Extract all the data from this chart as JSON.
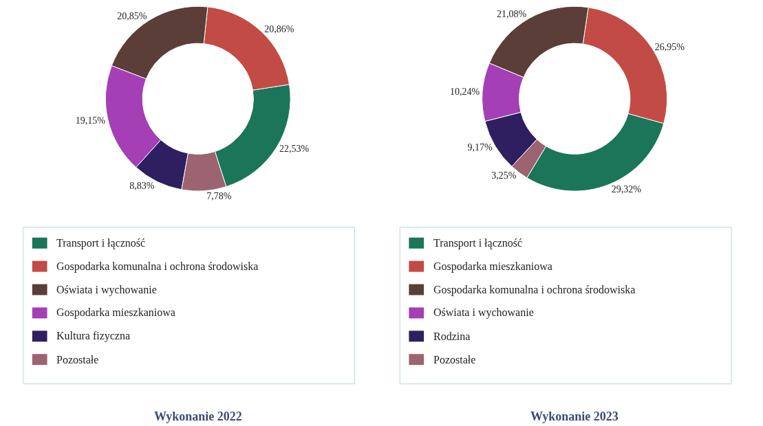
{
  "chart_data": [
    {
      "type": "donut",
      "title": "Wykonanie 2022",
      "categories": [
        "Transport i łączność",
        "Gospodarka komunalna i ochrona środowiska",
        "Oświata i wychowanie",
        "Gospodarka mieszkaniowa",
        "Kultura fizyczna",
        "Pozostałe"
      ],
      "values": [
        22.53,
        20.86,
        20.85,
        19.15,
        8.83,
        7.78
      ],
      "value_labels": [
        "22,53%",
        "20,86%",
        "20,85%",
        "19,15%",
        "8,83%",
        "7,78%"
      ],
      "colors": [
        "#1b7559",
        "#c24b45",
        "#5b3e38",
        "#a43fb5",
        "#2e2060",
        "#9c6470"
      ],
      "legend": "bottom"
    },
    {
      "type": "donut",
      "title": "Wykonanie 2023",
      "categories": [
        "Transport i łączność",
        "Gospodarka mieszkaniowa",
        "Gospodarka komunalna i ochrona środowiska",
        "Oświata i wychowanie",
        "Rodzina",
        "Pozostałe"
      ],
      "values": [
        29.32,
        26.95,
        21.08,
        10.24,
        9.17,
        3.25
      ],
      "value_labels": [
        "29,32%",
        "26,95%",
        "21,08%",
        "10,24%",
        "9,17%",
        "3,25%"
      ],
      "colors": [
        "#1b7559",
        "#c24b45",
        "#5b3e38",
        "#a43fb5",
        "#2e2060",
        "#9c6470"
      ],
      "legend": "bottom"
    }
  ]
}
